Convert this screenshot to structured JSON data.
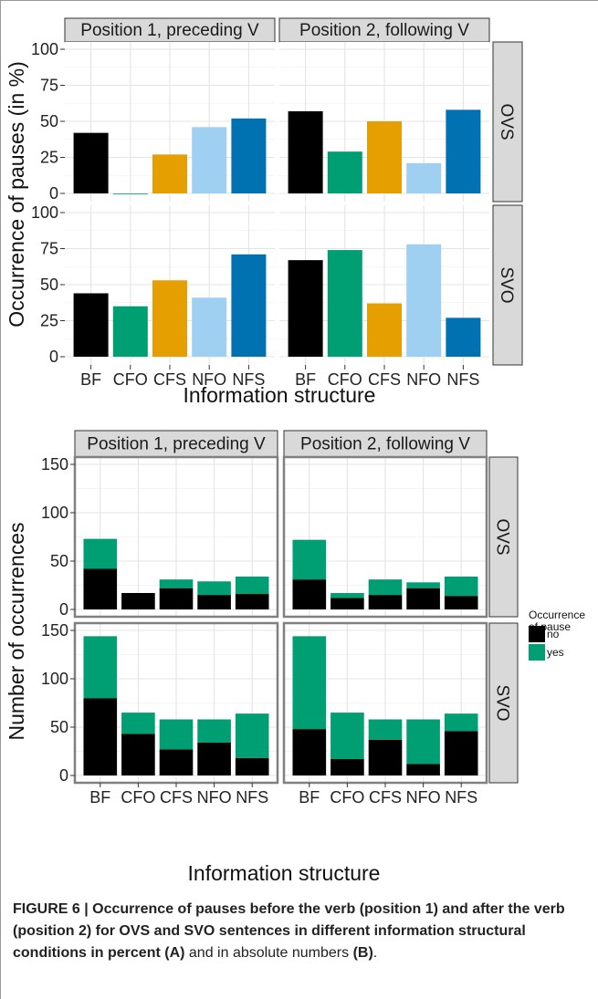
{
  "chart_data": [
    {
      "type": "bar",
      "panel_label": "A",
      "facet_columns": [
        "Position 1, preceding V",
        "Position 2, following V"
      ],
      "facet_rows": [
        "OVS",
        "SVO"
      ],
      "categories": [
        "BF",
        "CFO",
        "CFS",
        "NFO",
        "NFS"
      ],
      "category_colors": [
        "#000000",
        "#009E73",
        "#E69F00",
        "#9FD0F2",
        "#0072B2"
      ],
      "values": {
        "OVS": {
          "Position 1, preceding V": [
            42,
            0,
            27,
            46,
            52
          ],
          "Position 2, following V": [
            57,
            29,
            50,
            21,
            58
          ]
        },
        "SVO": {
          "Position 1, preceding V": [
            44,
            35,
            53,
            41,
            71
          ],
          "Position 2, following V": [
            67,
            74,
            37,
            78,
            27
          ]
        }
      },
      "xlabel": "Information structure",
      "ylabel": "Occurrence of pauses (in %)",
      "ylim": [
        0,
        100
      ],
      "yticks": [
        0,
        25,
        50,
        75,
        100
      ],
      "grid": true
    },
    {
      "type": "bar",
      "stacked": true,
      "panel_label": "B",
      "facet_columns": [
        "Position 1, preceding V",
        "Position 2, following V"
      ],
      "facet_rows": [
        "OVS",
        "SVO"
      ],
      "categories": [
        "BF",
        "CFO",
        "CFS",
        "NFO",
        "NFS"
      ],
      "series": [
        {
          "name": "no",
          "color": "#000000",
          "values": {
            "OVS": {
              "Position 1, preceding V": [
                42,
                17,
                22,
                15,
                16
              ],
              "Position 2, following V": [
                31,
                12,
                15,
                22,
                14
              ]
            },
            "SVO": {
              "Position 1, preceding V": [
                80,
                43,
                27,
                34,
                18
              ],
              "Position 2, following V": [
                48,
                17,
                37,
                12,
                46
              ]
            }
          }
        },
        {
          "name": "yes",
          "color": "#009E73",
          "values": {
            "OVS": {
              "Position 1, preceding V": [
                31,
                0,
                9,
                14,
                18
              ],
              "Position 2, following V": [
                41,
                5,
                16,
                6,
                20
              ]
            },
            "SVO": {
              "Position 1, preceding V": [
                64,
                22,
                31,
                24,
                46
              ],
              "Position 2, following V": [
                96,
                48,
                21,
                46,
                18
              ]
            }
          }
        }
      ],
      "legend_title": "Occurrence of pause",
      "legend_title_lines": [
        "Occurrence",
        "of pause"
      ],
      "legend_position": "right",
      "xlabel": "Information structure",
      "ylabel": "Number of occurrences",
      "ylim": [
        0,
        150
      ],
      "yticks": [
        0,
        50,
        100,
        150
      ],
      "grid": true
    }
  ],
  "caption": {
    "bold_lead": "FIGURE 6 | Occurrence of pauses before the verb (position 1) and after the verb (position 2) for OVS and SVO sentences in different information structural conditions in percent (A)",
    "middle": " and in absolute numbers ",
    "bold_tail": "(B)",
    "end": "."
  }
}
